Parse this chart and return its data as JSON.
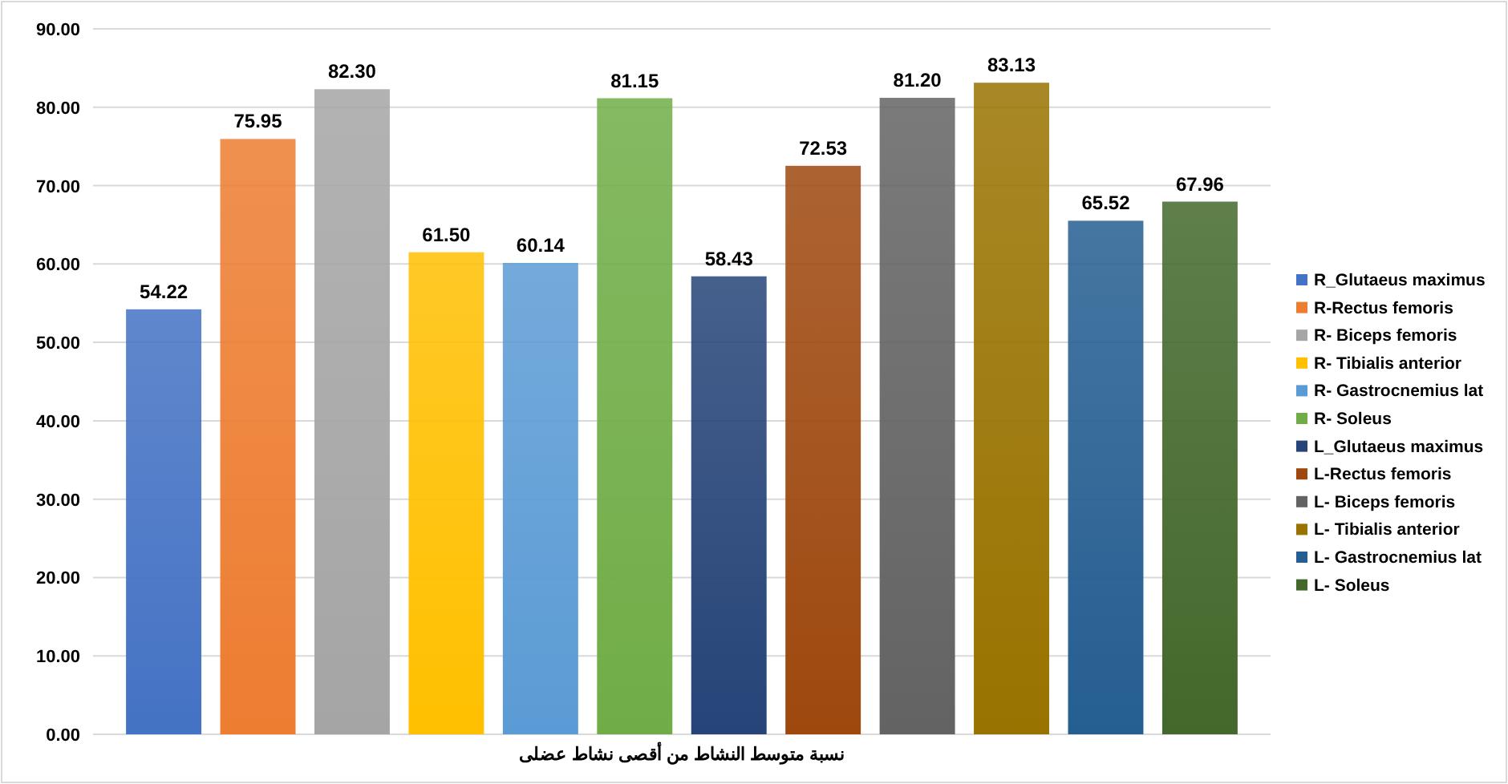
{
  "chart_data": {
    "type": "bar",
    "categories": [
      "نسبة متوسط النشاط من أقصى نشاط عضلى"
    ],
    "series": [
      {
        "name": "R_Glutaeus maximus",
        "color": "#4472c4",
        "values": [
          54.22
        ],
        "value_labels": [
          "54.22"
        ]
      },
      {
        "name": "R-Rectus femoris",
        "color": "#ed7d31",
        "values": [
          75.95
        ],
        "value_labels": [
          "75.95"
        ]
      },
      {
        "name": "R- Biceps femoris",
        "color": "#a5a5a5",
        "values": [
          82.3
        ],
        "value_labels": [
          "82.30"
        ]
      },
      {
        "name": "R- Tibialis anterior",
        "color": "#ffc000",
        "values": [
          61.5
        ],
        "value_labels": [
          "61.50"
        ]
      },
      {
        "name": "R- Gastrocnemius lat",
        "color": "#5b9bd5",
        "values": [
          60.14
        ],
        "value_labels": [
          "60.14"
        ]
      },
      {
        "name": "R- Soleus",
        "color": "#70ad47",
        "values": [
          81.15
        ],
        "value_labels": [
          "81.15"
        ]
      },
      {
        "name": "L_Glutaeus maximus",
        "color": "#264478",
        "values": [
          58.43
        ],
        "value_labels": [
          "58.43"
        ]
      },
      {
        "name": "L-Rectus femoris",
        "color": "#9e480e",
        "values": [
          72.53
        ],
        "value_labels": [
          "72.53"
        ]
      },
      {
        "name": "L- Biceps femoris",
        "color": "#636363",
        "values": [
          81.2
        ],
        "value_labels": [
          "81.20"
        ]
      },
      {
        "name": "L- Tibialis anterior",
        "color": "#997300",
        "values": [
          83.13
        ],
        "value_labels": [
          "83.13"
        ]
      },
      {
        "name": "L- Gastrocnemius lat",
        "color": "#255e91",
        "values": [
          65.52
        ],
        "value_labels": [
          "65.52"
        ]
      },
      {
        "name": "L- Soleus",
        "color": "#43682b",
        "values": [
          67.96
        ],
        "value_labels": [
          "67.96"
        ]
      }
    ],
    "ylim": [
      0,
      90
    ],
    "yticks": [
      {
        "value": 0,
        "label": "0.00"
      },
      {
        "value": 10,
        "label": "10.00"
      },
      {
        "value": 20,
        "label": "20.00"
      },
      {
        "value": 30,
        "label": "30.00"
      },
      {
        "value": 40,
        "label": "40.00"
      },
      {
        "value": 50,
        "label": "50.00"
      },
      {
        "value": 60,
        "label": "60.00"
      },
      {
        "value": 70,
        "label": "70.00"
      },
      {
        "value": 80,
        "label": "80.00"
      },
      {
        "value": 90,
        "label": "90.00"
      }
    ],
    "grid": "y",
    "legend": "right"
  }
}
